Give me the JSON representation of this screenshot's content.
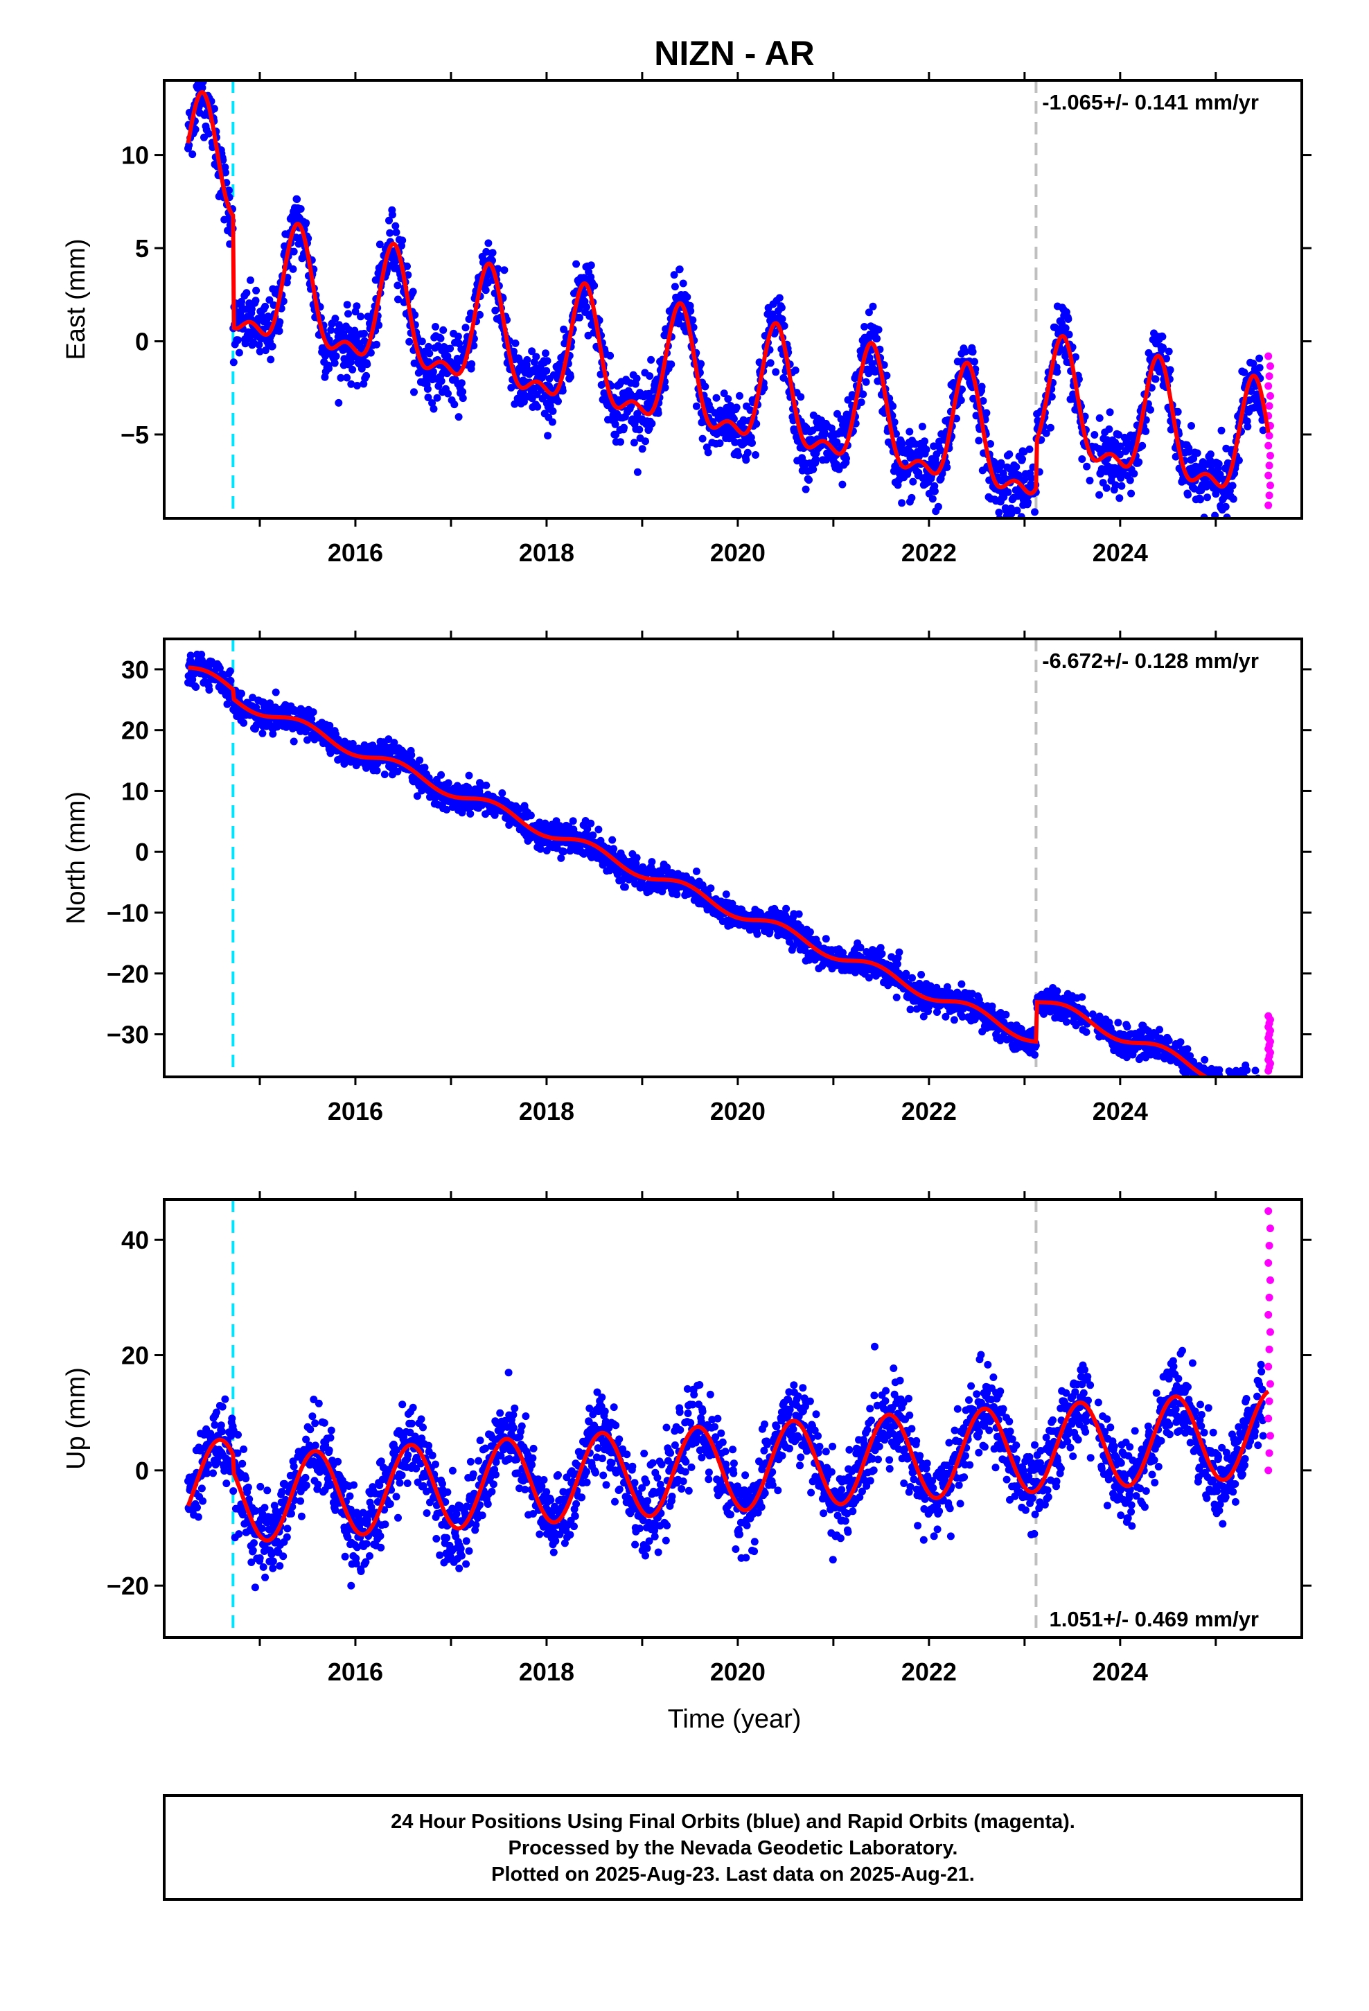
{
  "title": "NIZN - AR",
  "xlabel": "Time (year)",
  "footer": {
    "lines": [
      "24 Hour Positions Using Final Orbits (blue) and Rapid Orbits (magenta).",
      "Processed by the Nevada Geodetic Laboratory.",
      "Plotted on 2025-Aug-23. Last data on 2025-Aug-21."
    ]
  },
  "colors": {
    "final": "#0000ff",
    "rapid": "#ff00ff",
    "model": "#ff0000",
    "antenna_change": "#00e5ff",
    "equipment_change": "#bfbfbf"
  },
  "chart_data": [
    {
      "type": "scatter",
      "component": "east",
      "ylabel": "East (mm)",
      "rate": "-1.065+/- 0.141 mm/yr",
      "xlim": [
        2014.0,
        2025.9
      ],
      "ylim": [
        -9.5,
        14.0
      ],
      "xticks": [
        2016,
        2018,
        2020,
        2022,
        2024
      ],
      "xtick_labels": [
        "2016",
        "2018",
        "2020",
        "2022",
        "2024"
      ],
      "yticks": [
        -5,
        0,
        5,
        10
      ],
      "ytick_labels": [
        "−5",
        "0",
        "5",
        "10"
      ],
      "vertical_lines": [
        {
          "x": 2014.72,
          "color": "cyan"
        },
        {
          "x": 2023.12,
          "color": "gray"
        }
      ],
      "model": {
        "trend": -1.065,
        "amplitude": 2.9,
        "offset": 1.3,
        "x0": 2020.0,
        "y0": -0.3,
        "phase_peak": 0.4,
        "steps": [
          {
            "x": 2014.72,
            "dy": -6.0
          },
          {
            "x": 2023.12,
            "dy": 2.5
          }
        ]
      },
      "noise_mm": 0.9,
      "rapid_points": {
        "x": 2025.55,
        "y_range": [
          -8.8,
          -0.8
        ]
      },
      "grid": false
    },
    {
      "type": "scatter",
      "component": "north",
      "ylabel": "North (mm)",
      "rate": "-6.672+/- 0.128 mm/yr",
      "xlim": [
        2014.0,
        2025.9
      ],
      "ylim": [
        -37.0,
        35.0
      ],
      "xticks": [
        2016,
        2018,
        2020,
        2022,
        2024
      ],
      "xtick_labels": [
        "2016",
        "2018",
        "2020",
        "2022",
        "2024"
      ],
      "yticks": [
        -30,
        -20,
        -10,
        0,
        10,
        20,
        30
      ],
      "ytick_labels": [
        "−30",
        "−20",
        "−10",
        "0",
        "10",
        "20",
        "30"
      ],
      "vertical_lines": [
        {
          "x": 2014.72,
          "color": "cyan"
        },
        {
          "x": 2023.12,
          "color": "gray"
        }
      ],
      "model": {
        "trend": -6.672,
        "amplitude": 1.0,
        "offset": 0.0,
        "x0": 2020.0,
        "y0": -3.4,
        "phase_peak": 0.45,
        "steps": [
          {
            "x": 2014.72,
            "dy": -1.5
          },
          {
            "x": 2023.12,
            "dy": 6.5
          }
        ]
      },
      "noise_mm": 1.2,
      "rapid_points": {
        "x": 2025.55,
        "y_range": [
          -36.0,
          -27.0
        ]
      },
      "grid": false
    },
    {
      "type": "scatter",
      "component": "up",
      "ylabel": "Up (mm)",
      "rate": "1.051+/- 0.469 mm/yr",
      "xlim": [
        2014.0,
        2025.9
      ],
      "ylim": [
        -29.0,
        47.0
      ],
      "xticks": [
        2016,
        2018,
        2020,
        2022,
        2024
      ],
      "xtick_labels": [
        "2016",
        "2018",
        "2020",
        "2022",
        "2024"
      ],
      "yticks": [
        -20,
        0,
        20,
        40
      ],
      "ytick_labels": [
        "−20",
        "0",
        "20",
        "40"
      ],
      "vertical_lines": [
        {
          "x": 2014.72,
          "color": "cyan"
        },
        {
          "x": 2023.12,
          "color": "gray"
        }
      ],
      "model": {
        "trend": 1.051,
        "amplitude": 7.5,
        "offset": 0.0,
        "x0": 2020.0,
        "y0": 0.5,
        "phase_peak": 0.58,
        "steps": [
          {
            "x": 2014.72,
            "dy": -3.0
          }
        ]
      },
      "noise_mm": 3.5,
      "rapid_points": {
        "x": 2025.55,
        "y_range": [
          0.0,
          45.0
        ]
      },
      "grid": false
    }
  ]
}
